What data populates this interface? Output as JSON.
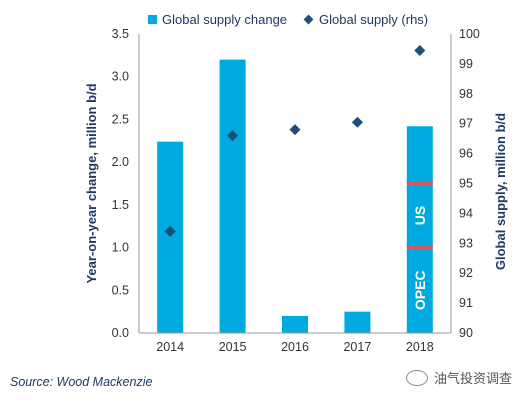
{
  "legend": {
    "bar_label": "Global supply change",
    "marker_label": "Global supply (rhs)"
  },
  "source": "Source: Wood Mackenzie",
  "watermark": "油气投资调查",
  "colors": {
    "bar": "#00a9e0",
    "marker": "#1f4e79",
    "divider": "#d35a5a",
    "axis_text": "#1f3864"
  },
  "chart_data": {
    "type": "bar",
    "categories": [
      "2014",
      "2015",
      "2016",
      "2017",
      "2018"
    ],
    "series": [
      {
        "name": "Global supply change",
        "type": "bar",
        "axis": "left",
        "values": [
          2.24,
          3.2,
          0.2,
          0.25,
          2.42
        ]
      },
      {
        "name": "Global supply (rhs)",
        "type": "scatter",
        "axis": "right",
        "values": [
          93.4,
          96.6,
          96.8,
          97.05,
          99.45
        ]
      }
    ],
    "ylabel": "Year-on-year change, million b/d",
    "ylabel_right": "Global supply, million b/d",
    "ylim": [
      0,
      3.5
    ],
    "ylim_right": [
      90,
      100
    ],
    "yticks": [
      0.0,
      0.5,
      1.0,
      1.5,
      2.0,
      2.5,
      3.0,
      3.5
    ],
    "yticks_right": [
      90,
      91,
      92,
      93,
      94,
      95,
      96,
      97,
      98,
      99,
      100
    ],
    "stack_annotation": {
      "category": "2018",
      "labels": [
        "OPEC",
        "US"
      ],
      "dividers": [
        1.0,
        1.75
      ]
    },
    "grid": false,
    "legend_position": "top"
  }
}
